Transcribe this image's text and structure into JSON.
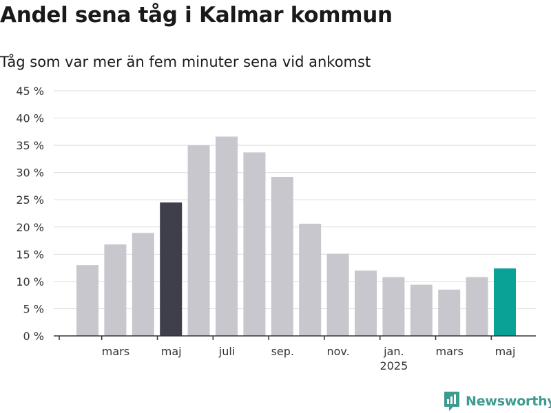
{
  "title": "Andel sena tåg i Kalmar kommun",
  "subtitle": "Tåg som var mer än fem minuter sena vid ankomst",
  "brand": {
    "name": "Newsworthy",
    "icon": "newsworthy-logo-icon",
    "color": "#3d9b8f"
  },
  "chart_data": {
    "type": "bar",
    "categories": [
      "2024-02",
      "2024-03",
      "2024-04",
      "2024-05",
      "2024-06",
      "2024-07",
      "2024-08",
      "2024-09",
      "2024-10",
      "2024-11",
      "2024-12",
      "2025-01",
      "2025-02",
      "2025-03",
      "2025-04",
      "2025-05"
    ],
    "values": [
      13.0,
      16.8,
      18.9,
      24.5,
      35.0,
      36.6,
      33.7,
      29.2,
      20.6,
      15.1,
      12.0,
      10.8,
      9.4,
      8.5,
      10.8,
      12.4
    ],
    "highlight": {
      "2024-05": "#3f3f4c",
      "2025-05": "#0aa196"
    },
    "bar_color": "#c8c7cd",
    "ylim": [
      0,
      45
    ],
    "yticks": [
      "45 %",
      "40 %",
      "35 %",
      "30 %",
      "25 %",
      "20 %",
      "15 %",
      "10 %",
      "5 %",
      "0 %"
    ],
    "xticks": [
      {
        "category": "2024-03",
        "label": "mars"
      },
      {
        "category": "2024-05",
        "label": "maj"
      },
      {
        "category": "2024-07",
        "label": "juli"
      },
      {
        "category": "2024-09",
        "label": "sep."
      },
      {
        "category": "2024-11",
        "label": "nov."
      },
      {
        "category": "2025-01",
        "label": "jan.",
        "sublabel": "2025"
      },
      {
        "category": "2025-03",
        "label": "mars"
      },
      {
        "category": "2025-05",
        "label": "maj"
      }
    ],
    "xlabel": "",
    "ylabel": "",
    "grid": true
  }
}
